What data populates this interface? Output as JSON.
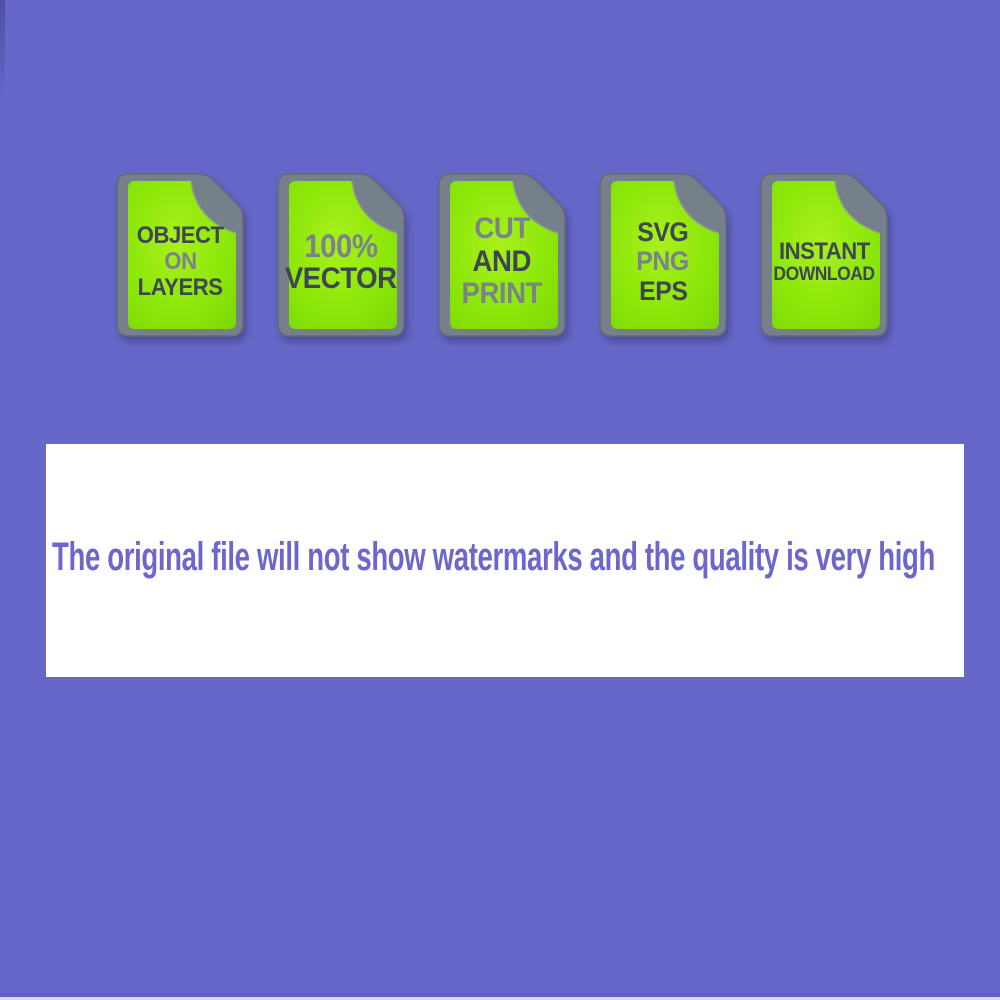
{
  "page": {
    "background_color": "#6767c9",
    "notice": {
      "text": "The original file will not show watermarks and the quality is very high",
      "text_color": "#6c66cd",
      "background": "#ffffff"
    },
    "badge_colors": {
      "paper_green": "#8ce607",
      "border_gray": "#76808b",
      "text_dark": "#3e4653",
      "text_light": "#7a828a"
    },
    "badges": [
      {
        "id": "object-on-layers",
        "lines": [
          {
            "text": "OBJECT",
            "tone": "dark",
            "size": "base"
          },
          {
            "text": "ON",
            "tone": "light",
            "size": "base"
          },
          {
            "text": "LAYERS",
            "tone": "dark",
            "size": "base"
          }
        ]
      },
      {
        "id": "100-percent-vector",
        "lines": [
          {
            "text": "100%",
            "tone": "light",
            "size": "xl"
          },
          {
            "text": "VECTOR",
            "tone": "dark",
            "size": "lg"
          }
        ]
      },
      {
        "id": "cut-and-print",
        "lines": [
          {
            "text": "CUT",
            "tone": "light",
            "size": "lg"
          },
          {
            "text": "AND",
            "tone": "dark",
            "size": "lg"
          },
          {
            "text": "PRINT",
            "tone": "light",
            "size": "lg"
          }
        ]
      },
      {
        "id": "svg-png-eps",
        "lines": [
          {
            "text": "SVG",
            "tone": "dark",
            "size": "md"
          },
          {
            "text": "PNG",
            "tone": "light",
            "size": "md"
          },
          {
            "text": "EPS",
            "tone": "dark",
            "size": "md"
          }
        ]
      },
      {
        "id": "instant-download",
        "lines": [
          {
            "text": "INSTANT",
            "tone": "dark",
            "size": "base"
          },
          {
            "text": "DOWNLOAD",
            "tone": "dark",
            "size": "sm"
          }
        ]
      }
    ]
  }
}
